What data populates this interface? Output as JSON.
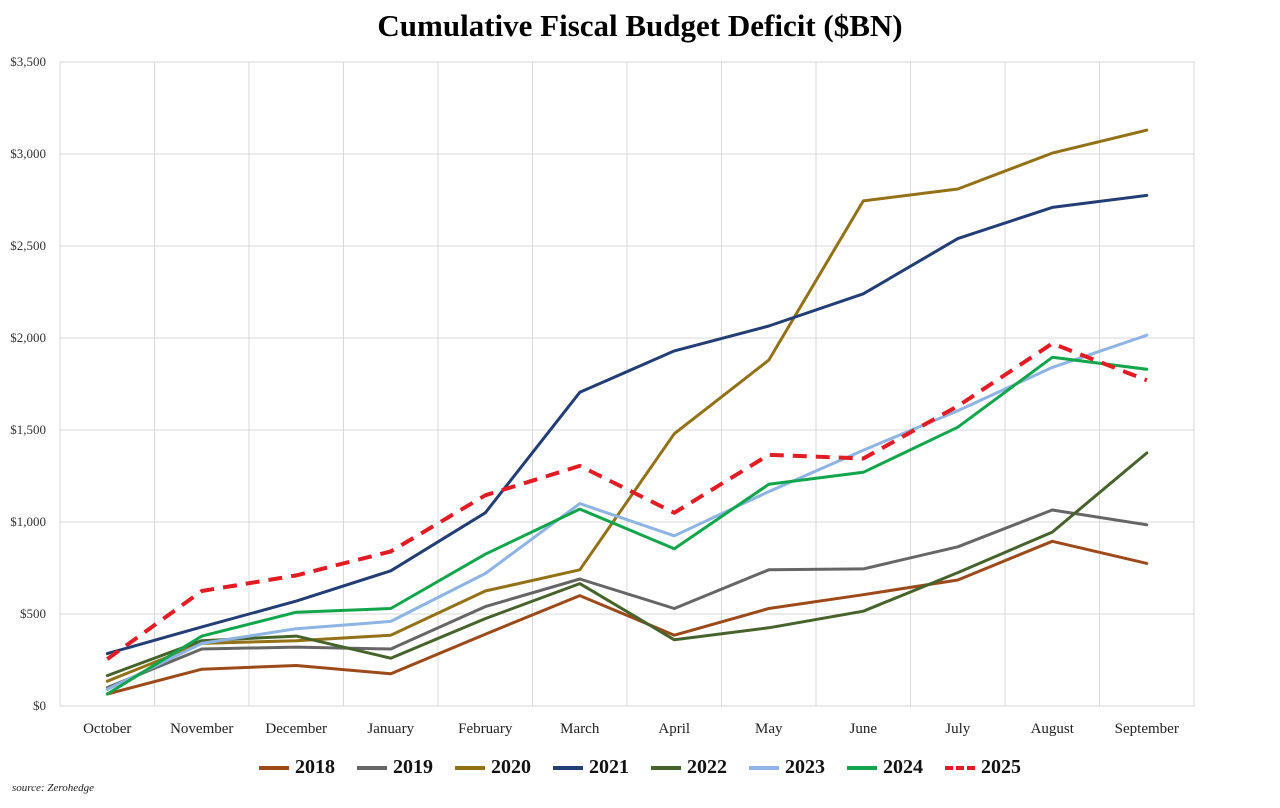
{
  "chart_data": {
    "type": "line",
    "title": "Cumulative Fiscal Budget Deficit ($BN)",
    "categories": [
      "October",
      "November",
      "December",
      "January",
      "February",
      "March",
      "April",
      "May",
      "June",
      "July",
      "August",
      "September"
    ],
    "ylim": [
      0,
      3500
    ],
    "yticks": [
      0,
      500,
      1000,
      1500,
      2000,
      2500,
      3000,
      3500
    ],
    "ytick_labels": [
      "$0",
      "$500",
      "$1,000",
      "$1,500",
      "$2,000",
      "$2,500",
      "$3,000",
      "$3,500"
    ],
    "grid": true,
    "legend_position": "bottom",
    "series": [
      {
        "name": "2018",
        "color": "#9c4a1a",
        "dashed": false,
        "values": [
          65,
          200,
          220,
          175,
          390,
          600,
          385,
          530,
          605,
          685,
          895,
          775
        ]
      },
      {
        "name": "2019",
        "color": "#666666",
        "dashed": false,
        "values": [
          100,
          310,
          320,
          310,
          540,
          690,
          530,
          740,
          745,
          865,
          1065,
          985
        ]
      },
      {
        "name": "2020",
        "color": "#937117",
        "dashed": false,
        "values": [
          135,
          340,
          355,
          385,
          625,
          740,
          1480,
          1880,
          2745,
          2810,
          3005,
          3130
        ]
      },
      {
        "name": "2021",
        "color": "#233e75",
        "dashed": false,
        "values": [
          285,
          430,
          570,
          735,
          1050,
          1705,
          1930,
          2065,
          2240,
          2540,
          2710,
          2775
        ]
      },
      {
        "name": "2022",
        "color": "#46632c",
        "dashed": false,
        "values": [
          165,
          355,
          380,
          260,
          475,
          665,
          360,
          425,
          515,
          725,
          945,
          1375
        ]
      },
      {
        "name": "2023",
        "color": "#8eb4e3",
        "dashed": false,
        "values": [
          90,
          340,
          420,
          460,
          720,
          1100,
          925,
          1165,
          1390,
          1605,
          1840,
          2015
        ]
      },
      {
        "name": "2024",
        "color": "#12a64c",
        "dashed": false,
        "values": [
          65,
          380,
          510,
          530,
          825,
          1070,
          855,
          1205,
          1270,
          1515,
          1895,
          1830
        ]
      },
      {
        "name": "2025",
        "color": "#e31b23",
        "dashed": true,
        "values": [
          255,
          625,
          710,
          840,
          1145,
          1305,
          1050,
          1365,
          1345,
          1630,
          1970,
          1770
        ]
      }
    ]
  },
  "source": "source: Zerohedge"
}
